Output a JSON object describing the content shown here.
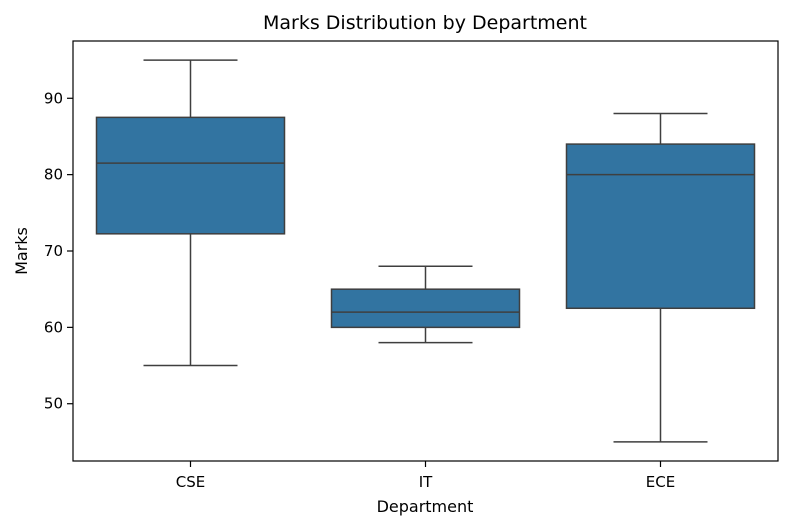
{
  "chart_data": {
    "type": "box",
    "title": "Marks Distribution by Department",
    "xlabel": "Department",
    "ylabel": "Marks",
    "categories": [
      "CSE",
      "IT",
      "ECE"
    ],
    "boxes": [
      {
        "category": "CSE",
        "min": 55,
        "q1": 72.25,
        "median": 81.5,
        "q3": 87.5,
        "max": 95
      },
      {
        "category": "IT",
        "min": 58,
        "q1": 60,
        "median": 62,
        "q3": 65,
        "max": 68
      },
      {
        "category": "ECE",
        "min": 45,
        "q1": 62.5,
        "median": 80,
        "q3": 84,
        "max": 88
      }
    ],
    "ylim": [
      42.5,
      97.5
    ],
    "yticks": [
      50,
      60,
      70,
      80,
      90
    ],
    "grid": false,
    "legend": "none",
    "colors": {
      "box_fill": "#3274a1",
      "line": "#3f3f3f",
      "axis": "#000000"
    }
  }
}
